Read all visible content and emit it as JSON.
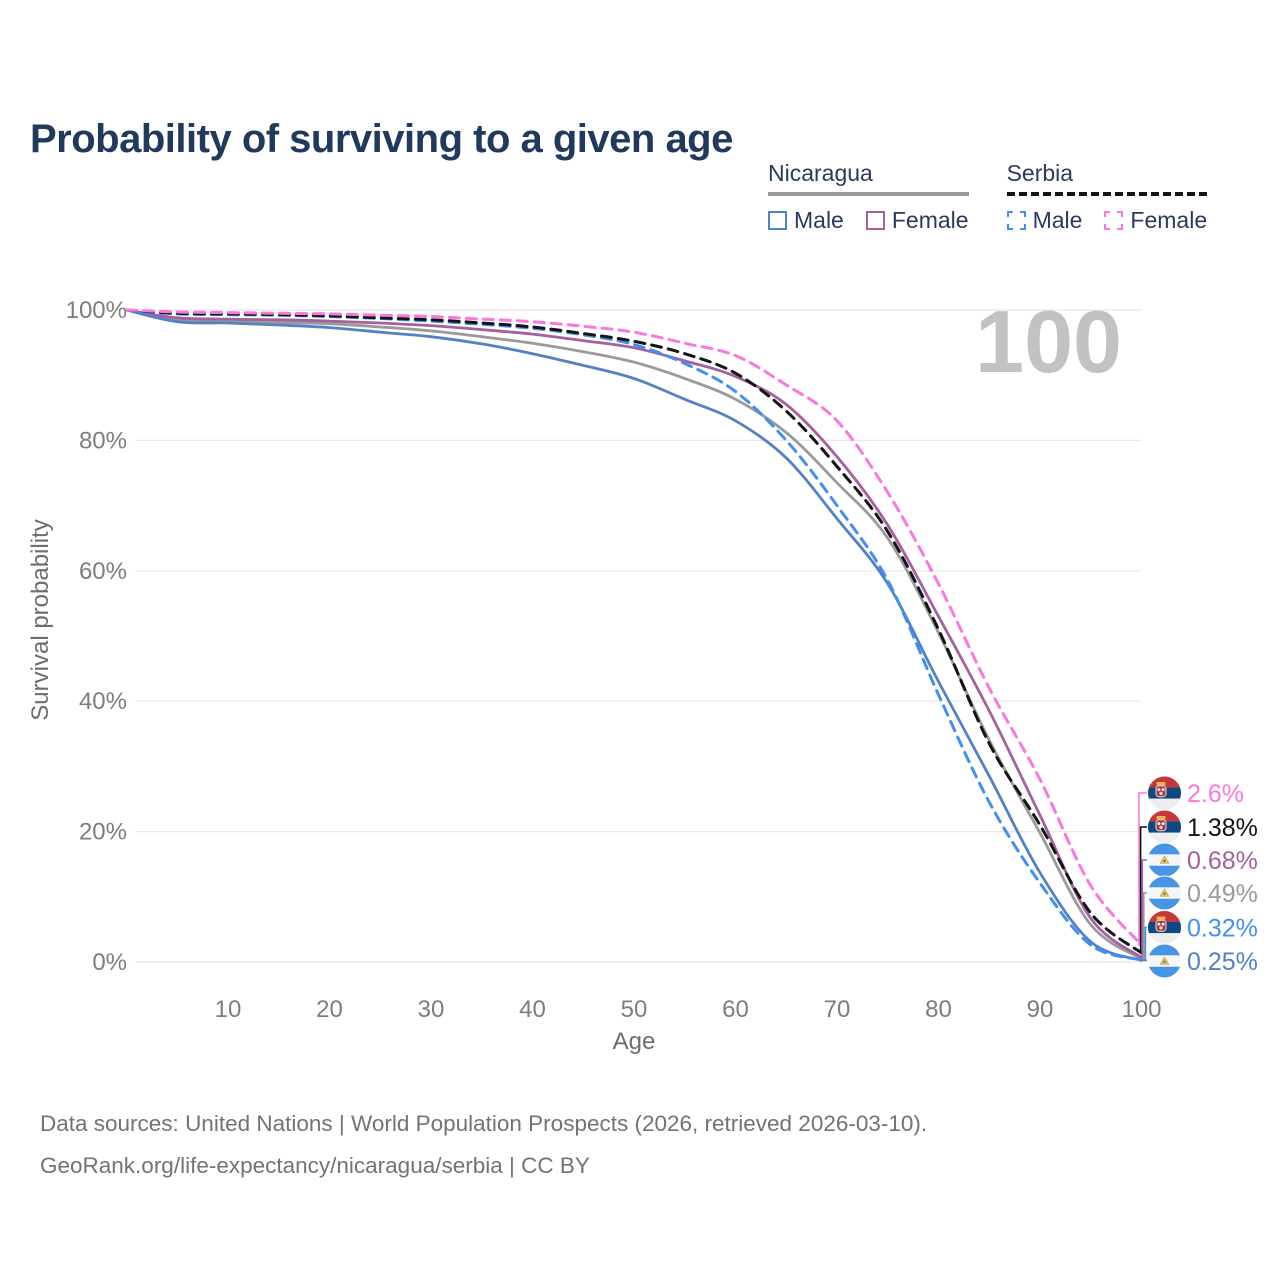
{
  "title": "Probability of surviving to a given age",
  "watermark_age": "100",
  "legend": {
    "groups": [
      {
        "country": "Nicaragua",
        "rule_style": "solid",
        "rule_color": "#9a9a9a",
        "items": [
          {
            "label": "Male",
            "color": "#5282c3",
            "dashed": false
          },
          {
            "label": "Female",
            "color": "#a5609d",
            "dashed": false
          }
        ]
      },
      {
        "country": "Serbia",
        "rule_style": "dashed",
        "rule_color": "#141414",
        "items": [
          {
            "label": "Male",
            "color": "#4190f0",
            "dashed": true
          },
          {
            "label": "Female",
            "color": "#fb77dd",
            "dashed": true
          }
        ]
      }
    ]
  },
  "chart_data": {
    "type": "line",
    "title": "Probability of surviving to a given age",
    "xlabel": "Age",
    "ylabel": "Survival probability",
    "x_ticks": [
      10,
      20,
      30,
      40,
      50,
      60,
      70,
      80,
      90,
      100
    ],
    "y_ticks": [
      0,
      20,
      40,
      60,
      80,
      100
    ],
    "y_tick_suffix": "%",
    "xlim": [
      0,
      100
    ],
    "ylim": [
      0,
      100
    ],
    "grid": "horizontal",
    "legend_position": "top-right",
    "ages": [
      0,
      5,
      10,
      15,
      20,
      25,
      30,
      35,
      40,
      45,
      50,
      55,
      60,
      65,
      70,
      75,
      80,
      85,
      90,
      95,
      100
    ],
    "series": [
      {
        "name": "Nicaragua Male",
        "country": "Nicaragua",
        "sex": "Male",
        "color": "#5282c3",
        "dashed": false,
        "values": [
          100,
          98.2,
          98.0,
          97.7,
          97.3,
          96.6,
          95.9,
          94.8,
          93.3,
          91.5,
          89.5,
          86.3,
          83.0,
          77.3,
          68.0,
          58.0,
          43.0,
          28.5,
          13.7,
          3.1,
          0.25
        ]
      },
      {
        "name": "Nicaragua Female",
        "country": "Nicaragua",
        "sex": "Female",
        "color": "#a5609d",
        "dashed": false,
        "values": [
          100,
          98.8,
          98.6,
          98.5,
          98.3,
          98.0,
          97.6,
          97.0,
          96.3,
          95.3,
          94.2,
          92.2,
          89.8,
          85.5,
          77.5,
          67.0,
          53.0,
          38.5,
          22.5,
          6.7,
          0.68
        ]
      },
      {
        "name": "Nicaragua Both sexes",
        "country": "Nicaragua",
        "sex": "Both",
        "color": "#9a9a9a",
        "dashed": false,
        "values": [
          100,
          98.5,
          98.3,
          98.1,
          97.9,
          97.4,
          96.8,
          95.9,
          94.9,
          93.6,
          92.0,
          89.5,
          86.3,
          81.2,
          73.5,
          65.0,
          50.5,
          34.0,
          19.8,
          5.7,
          0.49
        ]
      },
      {
        "name": "Serbia Male",
        "country": "Serbia",
        "sex": "Male",
        "color": "#4190f0",
        "dashed": true,
        "values": [
          100,
          99.4,
          99.3,
          99.2,
          99.0,
          98.7,
          98.3,
          97.8,
          97.2,
          96.2,
          94.7,
          91.8,
          87.5,
          80.0,
          70.0,
          58.5,
          41.0,
          24.5,
          12.1,
          2.6,
          0.32
        ]
      },
      {
        "name": "Serbia Female",
        "country": "Serbia",
        "sex": "Female",
        "color": "#fb77dd",
        "dashed": true,
        "values": [
          100,
          99.7,
          99.6,
          99.5,
          99.4,
          99.2,
          99.0,
          98.6,
          98.2,
          97.5,
          96.6,
          94.9,
          93.0,
          88.5,
          83.0,
          72.0,
          58.0,
          42.0,
          28.0,
          11.7,
          2.6
        ]
      },
      {
        "name": "Serbia Both sexes",
        "country": "Serbia",
        "sex": "Both",
        "color": "#141414",
        "dashed": true,
        "values": [
          100,
          99.5,
          99.4,
          99.3,
          99.1,
          98.8,
          98.5,
          98.0,
          97.4,
          96.4,
          95.2,
          93.3,
          90.3,
          84.5,
          76.0,
          66.0,
          51.0,
          33.5,
          21.0,
          7.5,
          1.38
        ]
      }
    ],
    "end_labels": [
      {
        "text": "2.6%",
        "series_index": 4,
        "flag": "serbia",
        "color": "#fb77dd"
      },
      {
        "text": "1.38%",
        "series_index": 5,
        "flag": "serbia",
        "color": "#141414"
      },
      {
        "text": "0.68%",
        "series_index": 1,
        "flag": "nicaragua",
        "color": "#a5609d"
      },
      {
        "text": "0.49%",
        "series_index": 2,
        "flag": "nicaragua",
        "color": "#9a9a9a"
      },
      {
        "text": "0.32%",
        "series_index": 3,
        "flag": "serbia",
        "color": "#4190f0"
      },
      {
        "text": "0.25%",
        "series_index": 0,
        "flag": "nicaragua",
        "color": "#5282c3"
      }
    ]
  },
  "footer": {
    "line1": "Data sources: United Nations | World Population Prospects (2026, retrieved 2026-03-10).",
    "line2": "GeoRank.org/life-expectancy/nicaragua/serbia | CC BY"
  }
}
